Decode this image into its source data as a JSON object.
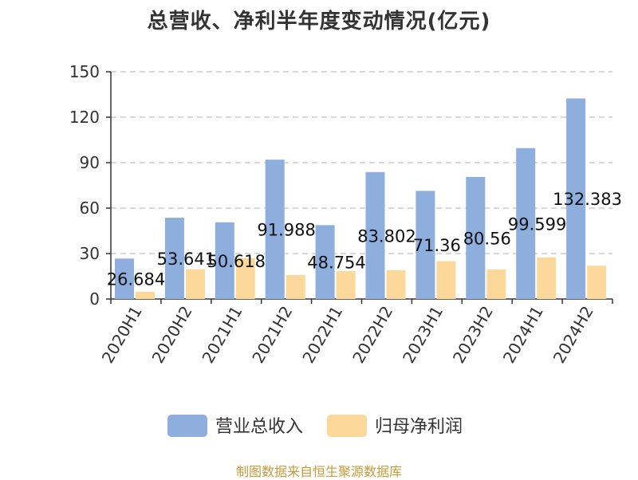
{
  "title": "总营收、净利半年度变动情况(亿元)",
  "source": "制图数据来自恒生聚源数据库",
  "chart_data": {
    "type": "bar",
    "categories": [
      "2020H1",
      "2020H2",
      "2021H1",
      "2021H2",
      "2022H1",
      "2022H2",
      "2023H1",
      "2023H2",
      "2024H1",
      "2024H2"
    ],
    "series": [
      {
        "name": "营业总收入",
        "color": "#8eaedd",
        "values": [
          26.684,
          53.641,
          50.618,
          91.988,
          48.754,
          83.802,
          71.36,
          80.56,
          99.599,
          132.383
        ],
        "labels": [
          "26.684",
          "53.641",
          "50.618",
          "91.988",
          "48.754",
          "83.802",
          "71.36",
          "80.56",
          "99.599",
          "132.383"
        ]
      },
      {
        "name": "归母净利润",
        "color": "#fdd89b",
        "values": [
          4.8,
          19.7,
          27.0,
          15.9,
          18.5,
          19.0,
          25.0,
          19.5,
          27.5,
          22.0
        ]
      }
    ],
    "yticks": [
      0,
      30,
      60,
      90,
      120,
      150
    ],
    "ylim": [
      0,
      150
    ],
    "grid": true,
    "legend_position": "bottom-center"
  }
}
